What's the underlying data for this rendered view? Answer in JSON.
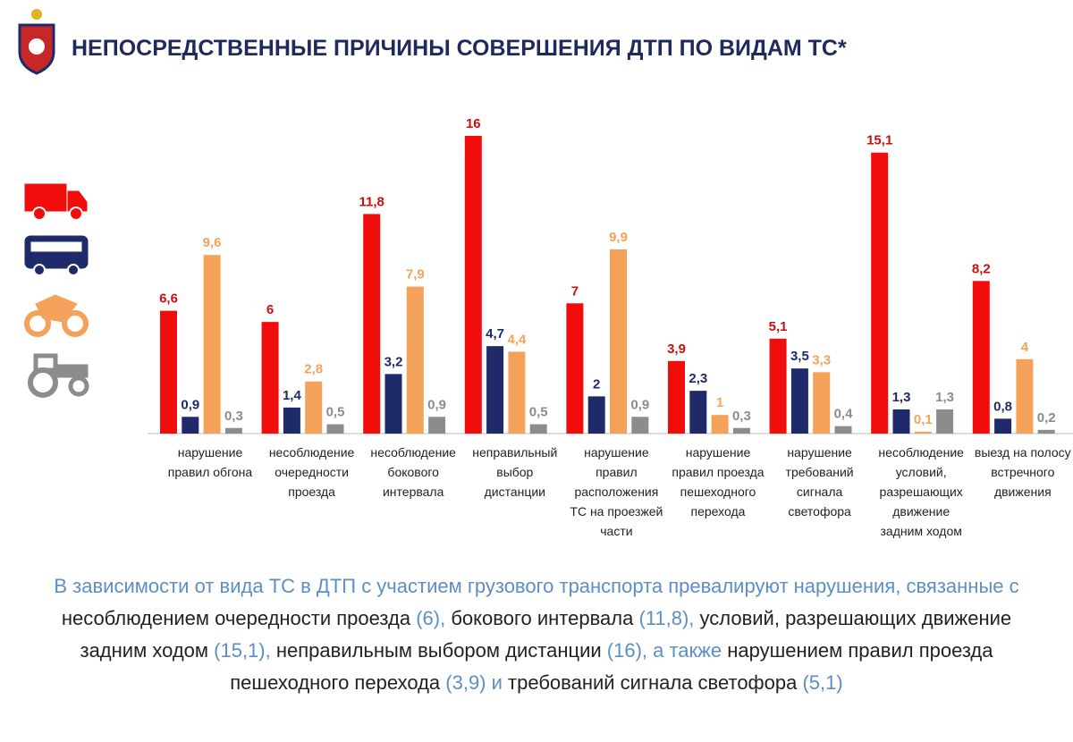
{
  "chart_data": {
    "type": "bar",
    "title": "НЕПОСРЕДСТВЕННЫЕ ПРИЧИНЫ СОВЕРШЕНИЯ ДТП ПО ВИДАМ ТС*",
    "categories": [
      "нарушение правил обгона",
      "несоблюдение очередности проезда",
      "несоблюдение бокового интервала",
      "неправильный выбор дистанции",
      "нарушение правил расположения ТС на проезжей части",
      "нарушение правил проезда пешеходного перехода",
      "нарушение требований сигнала светофора",
      "несоблюдение условий, разрешающих движение задним ходом",
      "выезд на полосу встречного движения"
    ],
    "series": [
      {
        "color": "#f20d0d",
        "values": [
          6.6,
          6,
          11.8,
          16,
          7,
          3.9,
          5.1,
          15.1,
          8.2
        ],
        "value_labels": [
          "6,6",
          "6",
          "11,8",
          "16",
          "7",
          "3,9",
          "5,1",
          "15,1",
          "8,2"
        ]
      },
      {
        "color": "#1f2a6b",
        "values": [
          0.9,
          1.4,
          3.2,
          4.7,
          2,
          2.3,
          3.5,
          1.3,
          0.8
        ],
        "value_labels": [
          "0,9",
          "1,4",
          "3,2",
          "4,7",
          "2",
          "2,3",
          "3,5",
          "1,3",
          "0,8"
        ]
      },
      {
        "color": "#f4a259",
        "values": [
          9.6,
          2.8,
          7.9,
          4.4,
          9.9,
          1,
          3.3,
          0.1,
          4
        ],
        "value_labels": [
          "9,6",
          "2,8",
          "7,9",
          "4,4",
          "9,9",
          "1",
          "3,3",
          "0,1",
          "4"
        ]
      },
      {
        "color": "#8c8c8c",
        "values": [
          0.3,
          0.5,
          0.9,
          0.5,
          0.9,
          0.3,
          0.4,
          1.3,
          0.2
        ],
        "value_labels": [
          "0,3",
          "0,5",
          "0,9",
          "0,5",
          "0,9",
          "0,3",
          "0,4",
          "1,3",
          "0,2"
        ]
      }
    ]
  },
  "summary": [
    {
      "text": "В зависимости от вида ТС в ДТП с участием грузового транспорта превалируют нарушения, связанные с ",
      "color": "#5b8fc5"
    },
    {
      "text": "несоблюдением очередности проезда ",
      "color": "#222222"
    },
    {
      "text": "(6), ",
      "color": "#5b8fc5"
    },
    {
      "text": "бокового интервала ",
      "color": "#222222"
    },
    {
      "text": "(11,8), ",
      "color": "#5b8fc5"
    },
    {
      "text": "условий, разрешающих движение задним ходом ",
      "color": "#222222"
    },
    {
      "text": "(15,1), ",
      "color": "#5b8fc5"
    },
    {
      "text": "неправильным выбором дистанции ",
      "color": "#222222"
    },
    {
      "text": "(16), а также ",
      "color": "#5b8fc5"
    },
    {
      "text": "нарушением правил проезда пешеходного перехода ",
      "color": "#222222"
    },
    {
      "text": "(3,9) и ",
      "color": "#5b8fc5"
    },
    {
      "text": "требований сигнала светофора ",
      "color": "#222222"
    },
    {
      "text": "(5,1)",
      "color": "#5b8fc5"
    }
  ]
}
